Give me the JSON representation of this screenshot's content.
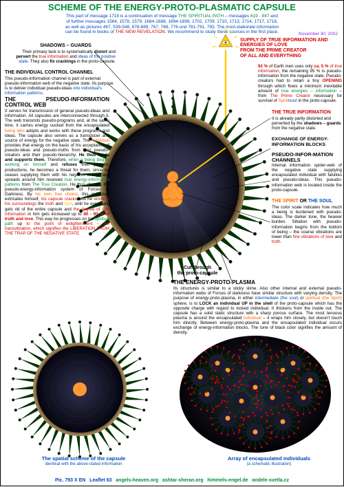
{
  "colors": {
    "green": "#008c3a",
    "blue": "#0047b3",
    "red": "#d40000",
    "orange": "#ff6600",
    "purple": "#8a2be2",
    "brown": "#7a4a00",
    "black": "#000000",
    "capsule_dark": "#1a1a2e",
    "capsule_mid": "#2b2b45",
    "spike_green": "#004d00",
    "spike_tip": "#003300",
    "rim_outer": "#9a8050",
    "being": "#ff9933",
    "eye_triangle": "#ffcc00"
  },
  "title": "SCHEME OF THE ENERGY-PROTO-PLASMATIC CAPSULE",
  "intro": {
    "l1a": "This part of message 1718 is a continuation of message ",
    "l1b": "THE SPIRITUAL PATH",
    "l1c": " – messages ",
    "l1d": "819 - 847",
    "l1e": " and",
    "l2": "of further messages 1564, 1578, 1579, 1684-1688, 1694-1699, 1702, 1709, 1710, 1713, 1714, 1717, 1718,",
    "l3": "as well as pictures 467, 539-548, 678-689, 767, 768, 776 und 781-791, 793. The most elaborate information",
    "l4a": "can be found in books of ",
    "l4b": "THE NEW REVELATION",
    "l4c": ". We recommend to study these sources in the first place.",
    "date": "November 30, 2002"
  },
  "supply": {
    "h": "SUPPLY OF TRUE INFORMATION AND ENERGIES OF LOVE",
    "r1": "FROM THE PRIME CREATOR",
    "r2": "OF ALL AND EVERYTHING"
  },
  "shadows": {
    "h": "SHADOWS – GUARDS",
    "t1": "Their primary task is to systematically ",
    "t2": "distort",
    "t3": " and ",
    "t4": "pervert",
    "t5": " the ",
    "t6": "true information",
    "t7": " and ",
    "t8": "ideas of the positive state",
    "t9": ". They also ",
    "t10": "fix crackings",
    "t11": " in the proto-capsule."
  },
  "channel": {
    "h": "THE INDIVIDUAL CONTROL CHANNEL",
    "t": "This pseudo-information channel is part of external pseudo-information web of the negative state. Its purpose is to deliver individual pseudo-ideas ",
    "t2": "into individual's information patterns."
  },
  "web": {
    "h": "THE PSEUDO-INFORMATION CONTROL WEB",
    "t": "It serves for transmission of general pseudo-ideas and information. All capsules are interconnected through it. The web transmits pseudo-programs and, at the same time, it carries energy sucked from the encapsulated ",
    "being": "being who",
    "t2": " adopts and works with these programs and ideas. The capsule also serves as a transducer and source of energy for the negative state. The ",
    "ind": "individual",
    "t3": " provides that energy on the basis of his acceptance of pseudo-ideas and pseudo-truths from their pseudo-creators and their pseudo-hierarchy. ",
    "feeds": "He thus feeds and supports them.",
    "t4": " Therefore, ",
    "when": "when a being begins working on himself",
    "t5": " and ",
    "refuses": "refuses",
    "t6": " their pseudo-productions, he becomes a threat for them, since he ceases supplying them with his negative energy and spreads around him received ",
    "tei": "true energy-information patterns",
    "t7": " from ",
    "tc": "The True Creation",
    "t8": ". He thus disrupts the pseudo-energy-information system of Forces of Darkness. By ",
    "own": "his own free choice",
    "t9": ", this individual extricates himself, ",
    "cracks": "his capsule cracks",
    "t10": " and he ",
    "emits": "emits to his surroundings",
    "t11": " the ",
    "truth": "truth",
    "t12": " and ",
    "light": "light",
    "t13": ", until he eventually gets rid of the entire capsule and ",
    "degree": "the degree of true information",
    "t14": " in him gets increased up to ",
    "pct": "80 - 90 % of truth and love",
    "t15": ". This way he progresses on his ",
    "path": "spiritual path",
    "t16": " up ",
    "enl": "to the point of enlightenment – the transvibration, which signifies the LIBERATION FROM THE TRAP OF THE NEGATIVE STATE."
  },
  "ninetytwo": {
    "a": "92 %",
    "b": " of Earth men uses only ",
    "c": "ca. 5 %",
    "d": " of true information",
    "e": ", the remaining 95 % is pseudo-information from the negative state. Pseudo-creators had to retain a tiny ",
    "f": "OPENING",
    "g": " through which flows a minimum inevitable amount of ",
    "h": "true energies – information",
    "i": " – from ",
    "j": "The Prime Creator",
    "k": " necessary for survival of ",
    "l": "Spirit",
    "m": "/",
    "n": "soul",
    "o": " in the proto-capsule."
  },
  "trueinfo": {
    "h": "THE TRUE INFORMATION",
    "t1": "It is already partly distorted and perverted by the ",
    "t2": "shadows – guards",
    "t3": " from the negative state."
  },
  "exchange": {
    "h": "EXCHANGE OF ENERGY-INFORMATION BLOCKS"
  },
  "pchannels": {
    "h": "PSEUDO-INFOR-MATION CHANNELS",
    "t": "Internal information spider-web of the negative state supplying encapsulated individual with falsities and pseudo-ideas. This pseudo-information web is located inside the proto-capsule."
  },
  "spirit": {
    "h1": "THE SPIRIT",
    "or": " OR ",
    "h2": "THE SOUL",
    "t": "The color scale indicates how much a being is burdened with pseudo-ideas. The darker tone, the heavier burden. Siltation with pseudo-information begins from the bottom of being – the coarse vibrations are lower than ",
    "fine": "fine vibrations of love",
    "and": " and ",
    "tr": "truth",
    "dot": "."
  },
  "cut": {
    "l1": "Cut through",
    "l2": "the proto-capsule"
  },
  "plasma": {
    "h": "THE ENERGY-PROTO-PLASMA",
    "t1": "Its structures is similar to a sticky slime. Also other internal and external pseudo-information webs of Forces of darkness have similar structure with varying density. The purpose of energy-proto-plasma, in either ",
    "inter": "intermediate (the soul)",
    "or": " or ",
    "spir": "spiritual (the Spirit)",
    "t2": " sphere, is to ",
    "lock": "LOCK an individual UP in the shell",
    "t3": " of the proto-capsule which has the opposite charge with regard to locked individual. It thickens from the inside out. The capsule has a solid static structure with a sharp porous surface. The most tenuous plasma is around the encapsulated ",
    "ind": "individual",
    "t4": " – it wraps him closely, but doesn't touch him directly. Between energy-proto-plasma and the encapsulated individual occurs exchange of energy-information blocks. The tone of black color signifies the amount of density."
  },
  "spatial": {
    "l1": "The spatial scheme of the capsule",
    "l2": "identical with the above-stated information"
  },
  "array": {
    "l1": "Array of encapsulated individuals",
    "l2": "(a schematic illustration)"
  },
  "footer": {
    "a": "Pic. 793 X EN",
    "b": "Leaflet 63",
    "s1": "angels-heaven.org",
    "s2": "ashtar-sheran.org",
    "s3": "himmels-engel.de",
    "s4": "andele-svetla.cz"
  }
}
